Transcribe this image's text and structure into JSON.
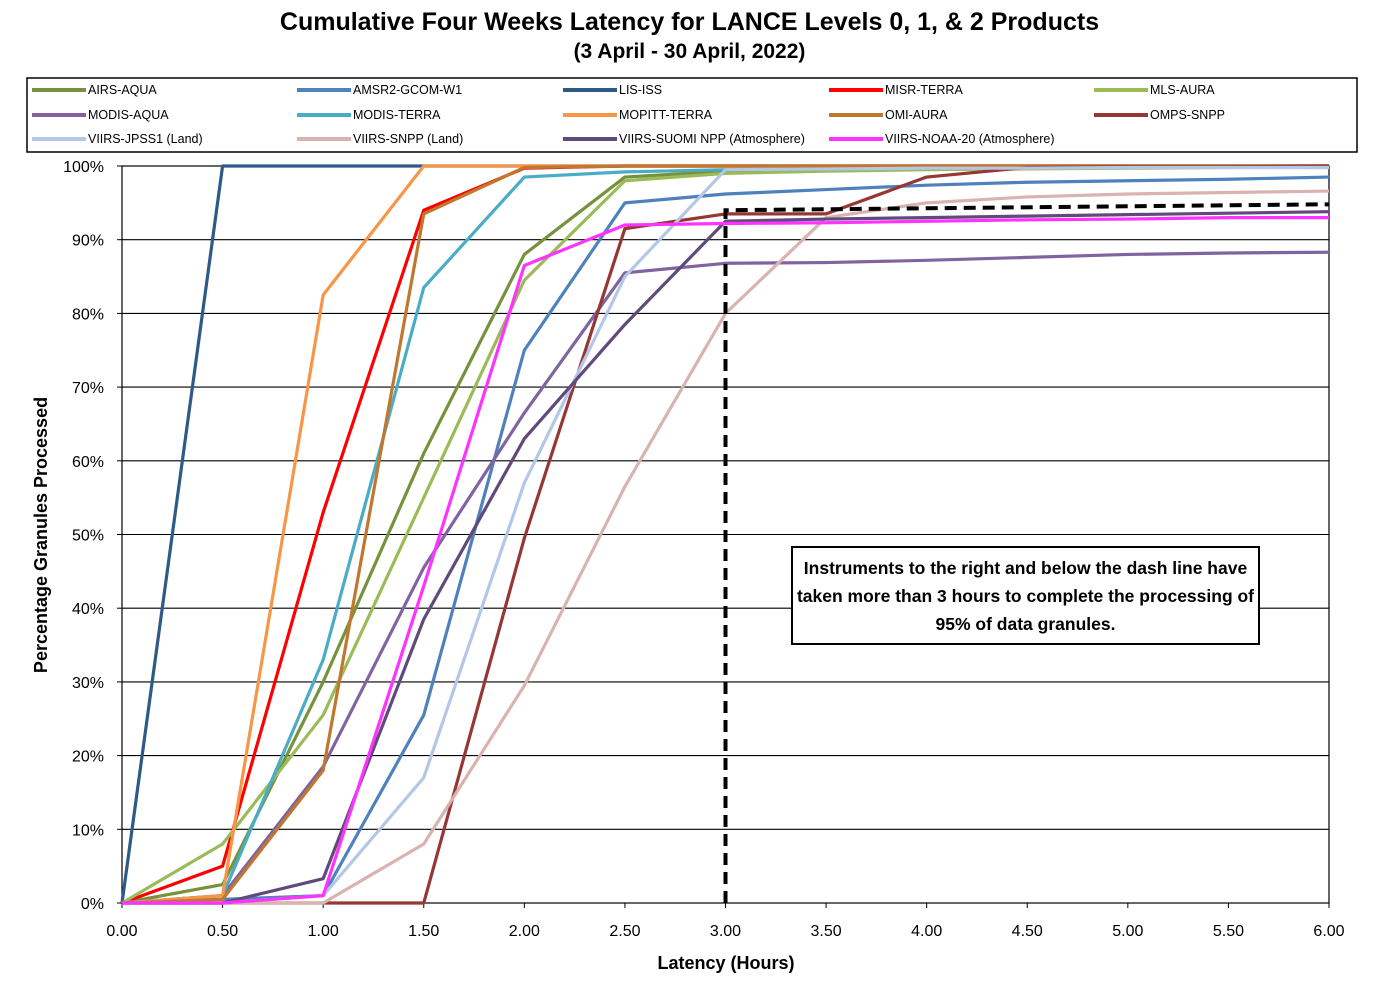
{
  "title": "Cumulative Four Weeks Latency  for LANCE Levels 0, 1, & 2 Products",
  "subtitle": "(3  April   -  30  April,  2022)",
  "annotation": "Instruments to the right and below the dash line have taken more than 3 hours to complete the processing of 95% of data granules.",
  "chart_data": {
    "type": "line",
    "title": "Cumulative Four Weeks Latency  for LANCE Levels 0, 1, & 2 Products",
    "subtitle": "(3  April   -  30  April,  2022)",
    "xlabel": "Latency (Hours)",
    "ylabel": "Percentage Granules Processed",
    "xlim": [
      0,
      6
    ],
    "ylim": [
      0,
      100
    ],
    "x_ticks": [
      "0.00",
      "0.50",
      "1.00",
      "1.50",
      "2.00",
      "2.50",
      "3.00",
      "3.50",
      "4.00",
      "4.50",
      "5.00",
      "5.50",
      "6.00"
    ],
    "y_ticks": [
      "0%",
      "10%",
      "20%",
      "30%",
      "40%",
      "50%",
      "60%",
      "70%",
      "80%",
      "90%",
      "100%"
    ],
    "grid": "horizontal",
    "legend_position": "top",
    "x": [
      0,
      0.5,
      1.0,
      1.5,
      2.0,
      2.5,
      3.0,
      3.5,
      4.0,
      4.5,
      5.0,
      5.5,
      6.0
    ],
    "series": [
      {
        "name": "AIRS-AQUA",
        "color": "#76923c",
        "values": [
          0,
          2.5,
          30,
          61,
          88,
          98.5,
          99.3,
          99.6,
          99.7,
          99.8,
          99.8,
          99.9,
          99.9
        ]
      },
      {
        "name": "AMSR2-GCOM-W1",
        "color": "#4f81bd",
        "values": [
          0,
          0.5,
          1,
          25.5,
          75,
          95,
          96.2,
          96.8,
          97.4,
          97.8,
          98,
          98.2,
          98.5
        ]
      },
      {
        "name": "LIS-ISS",
        "color": "#2e5a87",
        "values": [
          0,
          100,
          100,
          100,
          100,
          100,
          100,
          100,
          100,
          100,
          100,
          100,
          100
        ]
      },
      {
        "name": "MISR-TERRA",
        "color": "#ff0000",
        "values": [
          0,
          5,
          53,
          94,
          99.7,
          100,
          100,
          100,
          100,
          100,
          100,
          100,
          100
        ]
      },
      {
        "name": "MLS-AURA",
        "color": "#9bbb59",
        "values": [
          0,
          8,
          25.5,
          55,
          84.5,
          98,
          99,
          99.3,
          99.5,
          99.6,
          99.7,
          99.8,
          99.8
        ]
      },
      {
        "name": "MODIS-AQUA",
        "color": "#8064a2",
        "values": [
          0,
          1,
          18.5,
          45.5,
          66.5,
          85.5,
          86.8,
          86.9,
          87.2,
          87.6,
          88,
          88.2,
          88.3
        ]
      },
      {
        "name": "MODIS-TERRA",
        "color": "#4bacc6",
        "values": [
          0,
          1,
          33,
          83.5,
          98.5,
          99.2,
          99.5,
          99.6,
          99.7,
          99.8,
          99.8,
          99.9,
          99.9
        ]
      },
      {
        "name": "MOPITT-TERRA",
        "color": "#f79646",
        "values": [
          0,
          1,
          82.5,
          100,
          100,
          100,
          100,
          100,
          100,
          100,
          100,
          100,
          100
        ]
      },
      {
        "name": "OMI-AURA",
        "color": "#c0782e",
        "values": [
          0,
          0.5,
          18,
          93.5,
          99.8,
          100,
          100,
          100,
          100,
          100,
          100,
          100,
          100
        ]
      },
      {
        "name": "OMPS-SNPP",
        "color": "#953735",
        "values": [
          0,
          0,
          0,
          0,
          49.5,
          91.5,
          93.5,
          93.5,
          98.5,
          99.8,
          99.9,
          99.9,
          100
        ]
      },
      {
        "name": "VIIRS-JPSS1 (Land)",
        "color": "#b4c7e7",
        "values": [
          0,
          0,
          1,
          17,
          57,
          85,
          99.5,
          99.6,
          99.7,
          99.7,
          99.8,
          99.8,
          99.8
        ]
      },
      {
        "name": "VIIRS-SNPP (Land)",
        "color": "#d9b3b0",
        "values": [
          0,
          0,
          0,
          8,
          29.5,
          56.5,
          80,
          93,
          95,
          95.8,
          96.2,
          96.4,
          96.6
        ]
      },
      {
        "name": "VIIRS-SUOMI NPP (Atmosphere)",
        "color": "#604a7b",
        "values": [
          0,
          0,
          3.3,
          38.5,
          63,
          78.5,
          92.5,
          92.8,
          93,
          93.2,
          93.4,
          93.6,
          93.8
        ]
      },
      {
        "name": "VIIRS-NOAA-20 (Atmosphere)",
        "color": "#ff33ff",
        "values": [
          0,
          0,
          1,
          43,
          86.5,
          92,
          92.2,
          92.3,
          92.5,
          92.7,
          92.8,
          93,
          93
        ]
      }
    ],
    "threshold_line": {
      "x": [
        3.0,
        3.0,
        6.0
      ],
      "y": [
        0,
        94,
        94.8
      ],
      "style": "dashed",
      "color": "#000000"
    }
  }
}
